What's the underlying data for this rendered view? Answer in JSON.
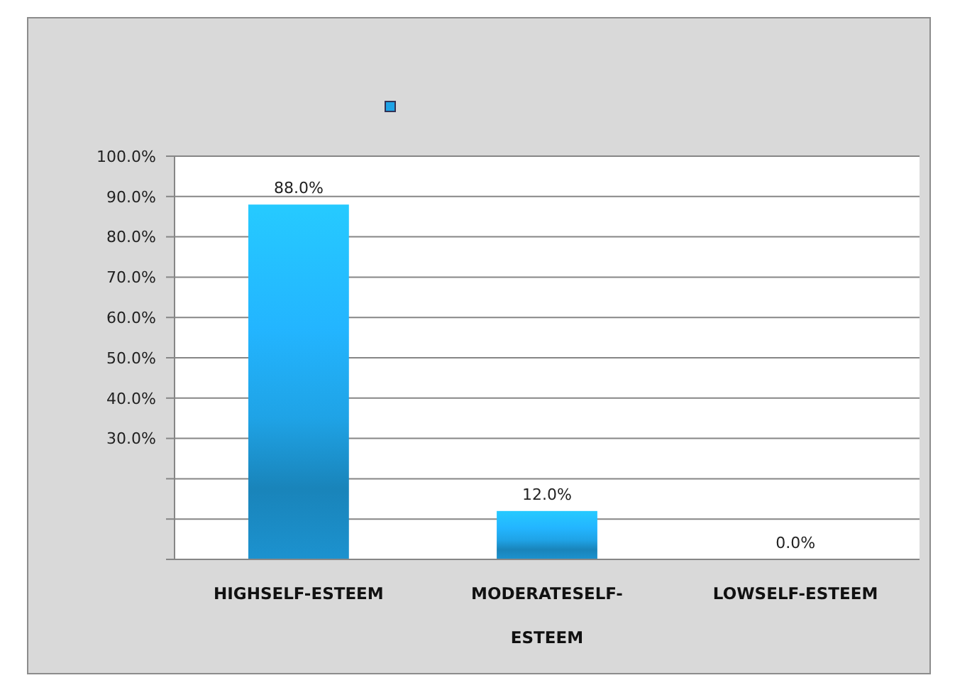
{
  "chart_data": {
    "type": "bar",
    "categories": [
      "HIGHSELF-ESTEEM",
      "MODERATESELF-ESTEEM",
      "LOWSELF-ESTEEM"
    ],
    "series": [
      {
        "color": "#1fa3e6",
        "values": [
          88,
          12,
          0
        ]
      }
    ],
    "value_labels": [
      "88.0%",
      "12.0%",
      "0.0%"
    ],
    "ylim": [
      0,
      100
    ],
    "yticks": [
      {
        "value": 0,
        "label": null
      },
      {
        "value": 10,
        "label": null
      },
      {
        "value": 20,
        "label": null
      },
      {
        "value": 30,
        "label": "30.0%"
      },
      {
        "value": 40,
        "label": "40.0%"
      },
      {
        "value": 50,
        "label": "50.0%"
      },
      {
        "value": 60,
        "label": "60.0%"
      },
      {
        "value": 70,
        "label": "70.0%"
      },
      {
        "value": 80,
        "label": "80.0%"
      },
      {
        "value": 90,
        "label": "90.0%"
      },
      {
        "value": 100,
        "label": "100.0%"
      }
    ],
    "grid": "y"
  }
}
